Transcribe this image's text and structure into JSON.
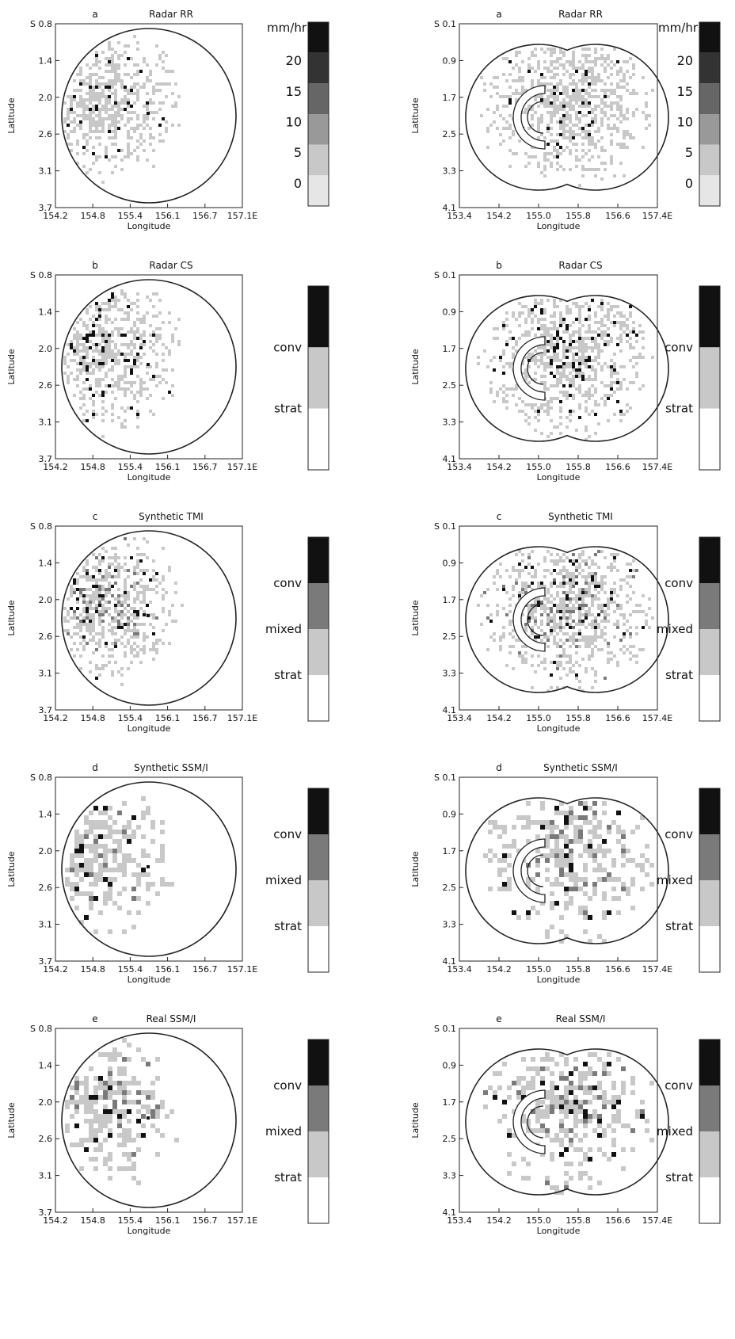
{
  "colors": {
    "frame": "#222222",
    "light": "#c8c8c8",
    "mid": "#7a7a7a",
    "dark": "#111111"
  },
  "columns": [
    {
      "lon_ticks": [
        "154.2",
        "154.8",
        "155.4",
        "156.1",
        "156.7",
        "157.1E"
      ],
      "lat_ticks": [
        "S 0.8",
        "1.4",
        "2.0",
        "2.6",
        "3.1",
        "3.7"
      ],
      "shape": "circle"
    },
    {
      "lon_ticks": [
        "153.4",
        "154.2",
        "155.0",
        "155.8",
        "156.6",
        "157.4E"
      ],
      "lat_ticks": [
        "S 0.1",
        "0.9",
        "1.7",
        "2.5",
        "3.3",
        "4.1"
      ],
      "shape": "double-circle"
    }
  ],
  "x_label": "Longitude",
  "y_label": "Latitude",
  "rows": [
    {
      "letter": "a",
      "title": "Radar RR",
      "legend_type": "rr",
      "legend": {
        "unit": "mm/hr",
        "levels": [
          "20",
          "15",
          "10",
          "5",
          "0"
        ]
      }
    },
    {
      "letter": "b",
      "title": "Radar CS",
      "legend_type": "cs",
      "legend": {
        "labels": [
          "conv",
          "strat"
        ]
      }
    },
    {
      "letter": "c",
      "title": "Synthetic TMI",
      "legend_type": "cms",
      "legend": {
        "labels": [
          "conv",
          "mixed",
          "strat"
        ]
      }
    },
    {
      "letter": "d",
      "title": "Synthetic SSM/I",
      "legend_type": "cms",
      "legend": {
        "labels": [
          "conv",
          "mixed",
          "strat"
        ]
      }
    },
    {
      "letter": "e",
      "title": "Real SSM/I",
      "legend_type": "cms",
      "legend": {
        "labels": [
          "conv",
          "mixed",
          "strat"
        ]
      }
    }
  ]
}
